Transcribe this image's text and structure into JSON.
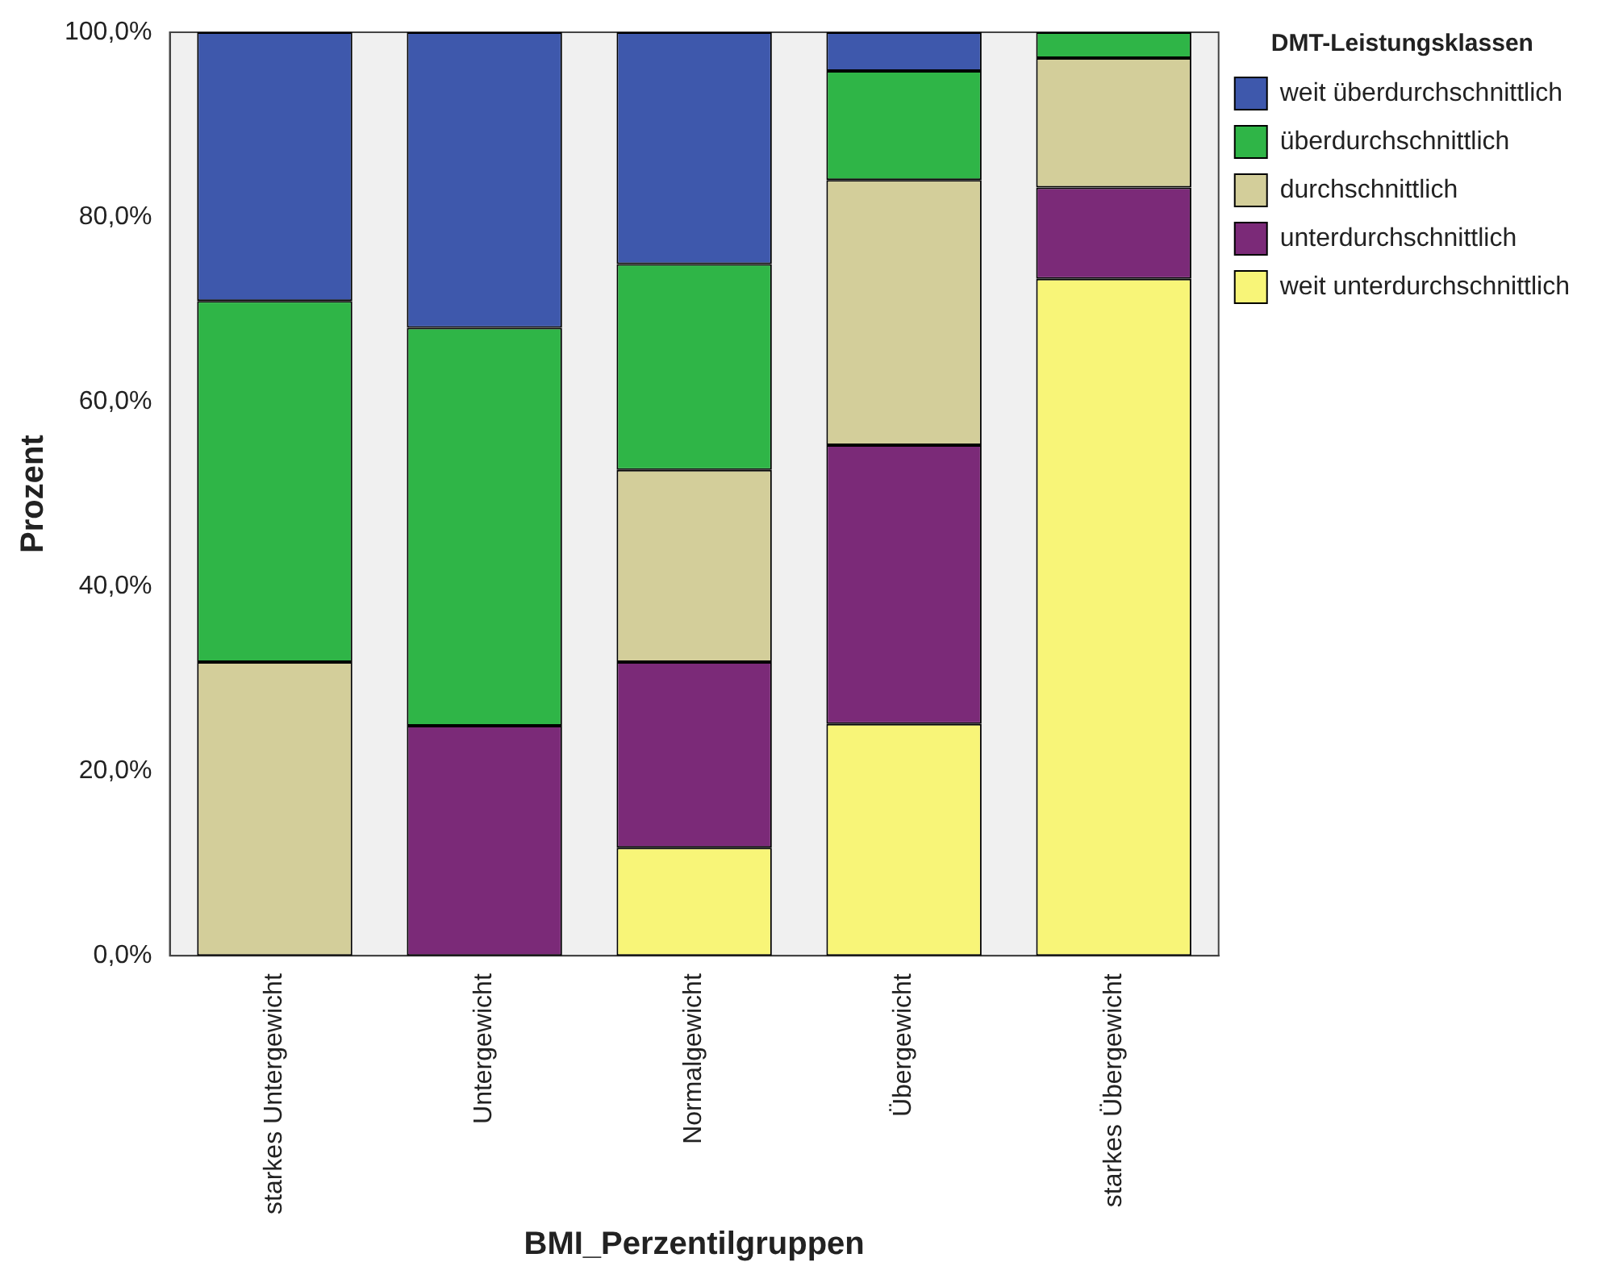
{
  "chart_data": {
    "type": "bar",
    "stacked": true,
    "xlabel": "BMI_Perzentilgruppen",
    "ylabel": "Prozent",
    "legend_title": "DMT-Leistungsklassen",
    "legend": "top right",
    "grid": false,
    "categories": [
      "starkes Untergewicht",
      "Untergewicht",
      "Normalgewicht",
      "Übergewicht",
      "starkes Übergewicht"
    ],
    "ylim": [
      0,
      100
    ],
    "yticks": [
      {
        "value": 0,
        "label": "0,0%"
      },
      {
        "value": 20,
        "label": "20,0%"
      },
      {
        "value": 40,
        "label": "40,0%"
      },
      {
        "value": 60,
        "label": "60,0%"
      },
      {
        "value": 80,
        "label": "80,0%"
      },
      {
        "value": 100,
        "label": "100,0%"
      }
    ],
    "series": [
      {
        "name": "weit unterdurchschnittlich",
        "color": "#f8f578",
        "values": [
          0,
          0,
          11.7,
          25.1,
          73.3
        ]
      },
      {
        "name": "unterdurchschnittlich",
        "color": "#7b2a78",
        "values": [
          0,
          24.9,
          20.1,
          30.2,
          9.9
        ]
      },
      {
        "name": "durchschnittlich",
        "color": "#d3ce9a",
        "values": [
          31.8,
          0,
          20.8,
          28.7,
          14.0
        ]
      },
      {
        "name": "überdurchschnittlich",
        "color": "#2fb547",
        "values": [
          39.1,
          43.1,
          22.3,
          11.8,
          2.8
        ]
      },
      {
        "name": "weit überdurchschnittlich",
        "color": "#3e58ac",
        "values": [
          29.1,
          32.0,
          25.1,
          4.2,
          0
        ]
      }
    ]
  }
}
